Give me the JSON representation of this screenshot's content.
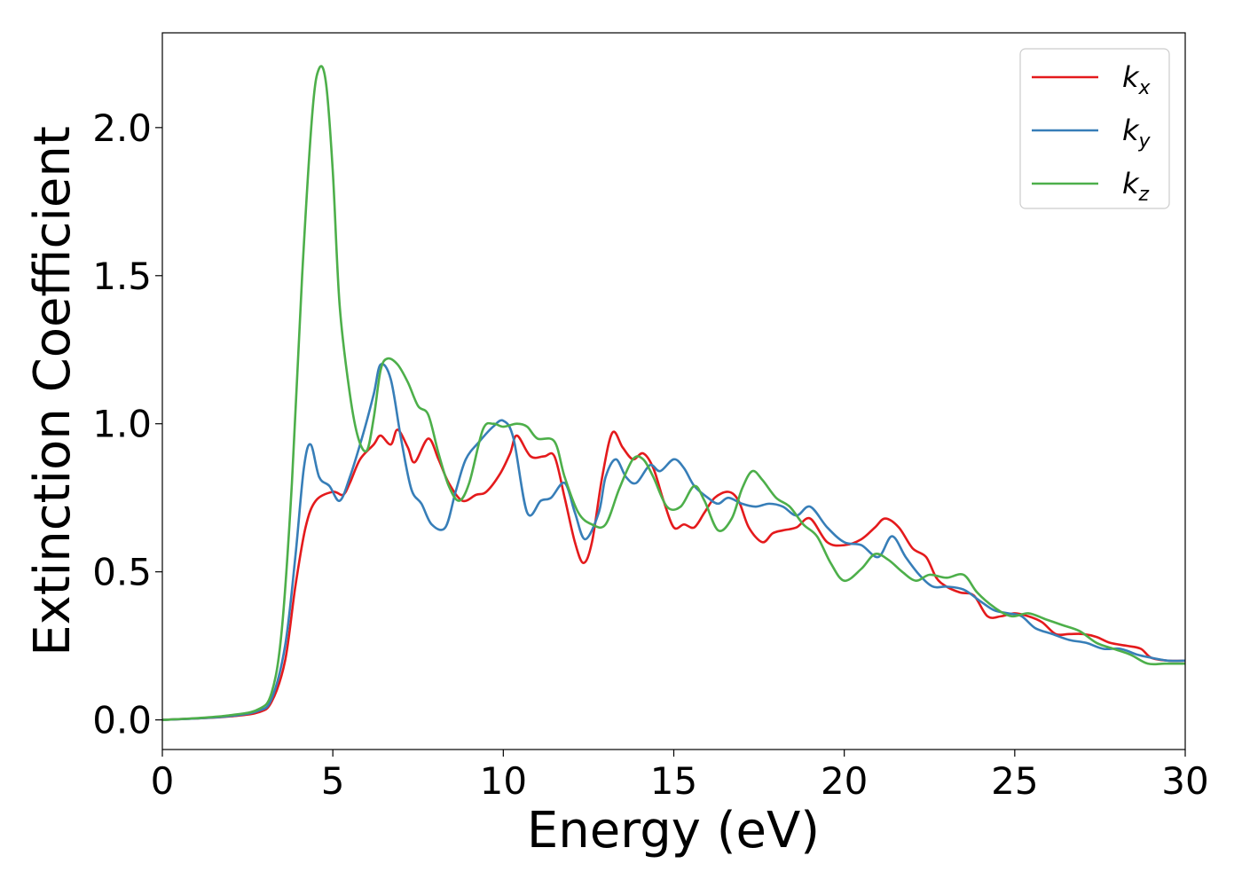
{
  "chart_data": {
    "type": "line",
    "title": "",
    "xlabel": "Energy (eV)",
    "ylabel": "Extinction Coefficient",
    "xlim": [
      0,
      30
    ],
    "ylim": [
      -0.1,
      2.32
    ],
    "xticks": [
      0,
      5,
      10,
      15,
      20,
      25,
      30
    ],
    "xtick_labels": [
      "0",
      "5",
      "10",
      "15",
      "20",
      "25",
      "30"
    ],
    "yticks": [
      0.0,
      0.5,
      1.0,
      1.5,
      2.0
    ],
    "ytick_labels": [
      "0.0",
      "0.5",
      "1.0",
      "1.5",
      "2.0"
    ],
    "grid": false,
    "legend_position": "top-right",
    "series": [
      {
        "name": "k",
        "subscript": "x",
        "color": "#e41a1c",
        "points": [
          [
            0,
            0
          ],
          [
            1,
            0.005
          ],
          [
            2,
            0.012
          ],
          [
            2.8,
            0.025
          ],
          [
            3.2,
            0.06
          ],
          [
            3.6,
            0.2
          ],
          [
            3.9,
            0.45
          ],
          [
            4.2,
            0.65
          ],
          [
            4.5,
            0.74
          ],
          [
            5.0,
            0.77
          ],
          [
            5.3,
            0.76
          ],
          [
            5.5,
            0.8
          ],
          [
            5.8,
            0.88
          ],
          [
            6.2,
            0.93
          ],
          [
            6.4,
            0.96
          ],
          [
            6.7,
            0.93
          ],
          [
            6.9,
            0.98
          ],
          [
            7.2,
            0.92
          ],
          [
            7.4,
            0.87
          ],
          [
            7.8,
            0.95
          ],
          [
            8.1,
            0.88
          ],
          [
            8.4,
            0.8
          ],
          [
            8.8,
            0.74
          ],
          [
            9.2,
            0.76
          ],
          [
            9.5,
            0.77
          ],
          [
            9.9,
            0.83
          ],
          [
            10.2,
            0.9
          ],
          [
            10.4,
            0.96
          ],
          [
            10.8,
            0.89
          ],
          [
            11.2,
            0.89
          ],
          [
            11.5,
            0.89
          ],
          [
            11.8,
            0.75
          ],
          [
            12.1,
            0.6
          ],
          [
            12.35,
            0.53
          ],
          [
            12.6,
            0.6
          ],
          [
            12.9,
            0.82
          ],
          [
            13.2,
            0.97
          ],
          [
            13.5,
            0.92
          ],
          [
            13.8,
            0.88
          ],
          [
            14.1,
            0.9
          ],
          [
            14.4,
            0.85
          ],
          [
            14.7,
            0.74
          ],
          [
            15.0,
            0.65
          ],
          [
            15.3,
            0.66
          ],
          [
            15.6,
            0.65
          ],
          [
            15.9,
            0.7
          ],
          [
            16.2,
            0.75
          ],
          [
            16.6,
            0.77
          ],
          [
            16.9,
            0.74
          ],
          [
            17.2,
            0.65
          ],
          [
            17.6,
            0.6
          ],
          [
            17.9,
            0.63
          ],
          [
            18.2,
            0.64
          ],
          [
            18.6,
            0.65
          ],
          [
            19.0,
            0.68
          ],
          [
            19.5,
            0.6
          ],
          [
            20.0,
            0.59
          ],
          [
            20.5,
            0.61
          ],
          [
            20.9,
            0.65
          ],
          [
            21.2,
            0.68
          ],
          [
            21.6,
            0.65
          ],
          [
            22.0,
            0.58
          ],
          [
            22.4,
            0.55
          ],
          [
            22.7,
            0.48
          ],
          [
            23.0,
            0.45
          ],
          [
            23.4,
            0.43
          ],
          [
            23.8,
            0.42
          ],
          [
            24.2,
            0.35
          ],
          [
            24.6,
            0.35
          ],
          [
            25.0,
            0.36
          ],
          [
            25.4,
            0.35
          ],
          [
            25.8,
            0.33
          ],
          [
            26.2,
            0.29
          ],
          [
            26.6,
            0.29
          ],
          [
            27.0,
            0.29
          ],
          [
            27.4,
            0.28
          ],
          [
            27.8,
            0.26
          ],
          [
            28.3,
            0.25
          ],
          [
            28.7,
            0.24
          ],
          [
            29.0,
            0.21
          ],
          [
            29.5,
            0.2
          ],
          [
            30,
            0.2
          ]
        ]
      },
      {
        "name": "k",
        "subscript": "y",
        "color": "#377eb8",
        "points": [
          [
            0,
            0
          ],
          [
            1,
            0.005
          ],
          [
            2,
            0.013
          ],
          [
            2.8,
            0.03
          ],
          [
            3.2,
            0.07
          ],
          [
            3.6,
            0.25
          ],
          [
            3.9,
            0.55
          ],
          [
            4.15,
            0.85
          ],
          [
            4.35,
            0.93
          ],
          [
            4.6,
            0.82
          ],
          [
            4.9,
            0.79
          ],
          [
            5.2,
            0.74
          ],
          [
            5.5,
            0.82
          ],
          [
            5.9,
            0.97
          ],
          [
            6.2,
            1.1
          ],
          [
            6.4,
            1.2
          ],
          [
            6.7,
            1.15
          ],
          [
            7.0,
            0.95
          ],
          [
            7.3,
            0.78
          ],
          [
            7.6,
            0.73
          ],
          [
            7.9,
            0.66
          ],
          [
            8.3,
            0.65
          ],
          [
            8.6,
            0.77
          ],
          [
            8.9,
            0.88
          ],
          [
            9.3,
            0.94
          ],
          [
            9.7,
            0.99
          ],
          [
            10.0,
            1.01
          ],
          [
            10.3,
            0.95
          ],
          [
            10.7,
            0.7
          ],
          [
            11.1,
            0.74
          ],
          [
            11.4,
            0.75
          ],
          [
            11.8,
            0.8
          ],
          [
            12.1,
            0.7
          ],
          [
            12.4,
            0.61
          ],
          [
            12.8,
            0.7
          ],
          [
            13.0,
            0.82
          ],
          [
            13.3,
            0.88
          ],
          [
            13.6,
            0.82
          ],
          [
            13.9,
            0.8
          ],
          [
            14.3,
            0.86
          ],
          [
            14.6,
            0.84
          ],
          [
            15.0,
            0.88
          ],
          [
            15.3,
            0.85
          ],
          [
            15.6,
            0.79
          ],
          [
            16.0,
            0.75
          ],
          [
            16.3,
            0.73
          ],
          [
            16.6,
            0.75
          ],
          [
            17.0,
            0.73
          ],
          [
            17.4,
            0.72
          ],
          [
            17.8,
            0.73
          ],
          [
            18.2,
            0.72
          ],
          [
            18.6,
            0.69
          ],
          [
            19.0,
            0.72
          ],
          [
            19.5,
            0.65
          ],
          [
            20.0,
            0.6
          ],
          [
            20.5,
            0.59
          ],
          [
            21.0,
            0.55
          ],
          [
            21.4,
            0.62
          ],
          [
            21.8,
            0.55
          ],
          [
            22.2,
            0.49
          ],
          [
            22.6,
            0.45
          ],
          [
            23.0,
            0.45
          ],
          [
            23.5,
            0.44
          ],
          [
            24.0,
            0.4
          ],
          [
            24.4,
            0.37
          ],
          [
            24.8,
            0.36
          ],
          [
            25.2,
            0.35
          ],
          [
            25.6,
            0.31
          ],
          [
            26.1,
            0.29
          ],
          [
            26.6,
            0.27
          ],
          [
            27.1,
            0.26
          ],
          [
            27.6,
            0.24
          ],
          [
            28.1,
            0.24
          ],
          [
            28.6,
            0.22
          ],
          [
            29.0,
            0.21
          ],
          [
            29.5,
            0.2
          ],
          [
            30,
            0.2
          ]
        ]
      },
      {
        "name": "k",
        "subscript": "z",
        "color": "#4daf4a",
        "points": [
          [
            0,
            0
          ],
          [
            1,
            0.006
          ],
          [
            2,
            0.016
          ],
          [
            2.8,
            0.035
          ],
          [
            3.2,
            0.09
          ],
          [
            3.5,
            0.3
          ],
          [
            3.8,
            0.8
          ],
          [
            4.1,
            1.5
          ],
          [
            4.4,
            2.05
          ],
          [
            4.6,
            2.2
          ],
          [
            4.8,
            2.15
          ],
          [
            5.0,
            1.85
          ],
          [
            5.2,
            1.4
          ],
          [
            5.5,
            1.1
          ],
          [
            5.75,
            0.95
          ],
          [
            6.0,
            0.91
          ],
          [
            6.2,
            1.02
          ],
          [
            6.4,
            1.18
          ],
          [
            6.6,
            1.22
          ],
          [
            6.9,
            1.2
          ],
          [
            7.2,
            1.14
          ],
          [
            7.5,
            1.06
          ],
          [
            7.8,
            1.03
          ],
          [
            8.1,
            0.9
          ],
          [
            8.4,
            0.79
          ],
          [
            8.7,
            0.74
          ],
          [
            9.0,
            0.8
          ],
          [
            9.4,
            0.98
          ],
          [
            9.7,
            1.0
          ],
          [
            10.0,
            0.99
          ],
          [
            10.4,
            1.0
          ],
          [
            10.7,
            0.99
          ],
          [
            11.0,
            0.95
          ],
          [
            11.5,
            0.94
          ],
          [
            11.8,
            0.82
          ],
          [
            12.2,
            0.7
          ],
          [
            12.6,
            0.66
          ],
          [
            13.0,
            0.66
          ],
          [
            13.4,
            0.78
          ],
          [
            13.8,
            0.88
          ],
          [
            14.1,
            0.88
          ],
          [
            14.4,
            0.82
          ],
          [
            14.8,
            0.72
          ],
          [
            15.2,
            0.72
          ],
          [
            15.6,
            0.79
          ],
          [
            15.9,
            0.74
          ],
          [
            16.3,
            0.64
          ],
          [
            16.7,
            0.68
          ],
          [
            17.0,
            0.78
          ],
          [
            17.3,
            0.84
          ],
          [
            17.6,
            0.81
          ],
          [
            18.0,
            0.75
          ],
          [
            18.4,
            0.72
          ],
          [
            18.8,
            0.66
          ],
          [
            19.2,
            0.62
          ],
          [
            19.6,
            0.53
          ],
          [
            20.0,
            0.47
          ],
          [
            20.5,
            0.51
          ],
          [
            20.9,
            0.56
          ],
          [
            21.3,
            0.54
          ],
          [
            21.7,
            0.5
          ],
          [
            22.1,
            0.47
          ],
          [
            22.5,
            0.49
          ],
          [
            23.0,
            0.48
          ],
          [
            23.5,
            0.49
          ],
          [
            23.9,
            0.43
          ],
          [
            24.4,
            0.38
          ],
          [
            24.9,
            0.35
          ],
          [
            25.4,
            0.36
          ],
          [
            25.9,
            0.34
          ],
          [
            26.4,
            0.32
          ],
          [
            26.9,
            0.3
          ],
          [
            27.4,
            0.26
          ],
          [
            27.9,
            0.24
          ],
          [
            28.4,
            0.22
          ],
          [
            28.9,
            0.19
          ],
          [
            29.4,
            0.19
          ],
          [
            30,
            0.19
          ]
        ]
      }
    ]
  }
}
